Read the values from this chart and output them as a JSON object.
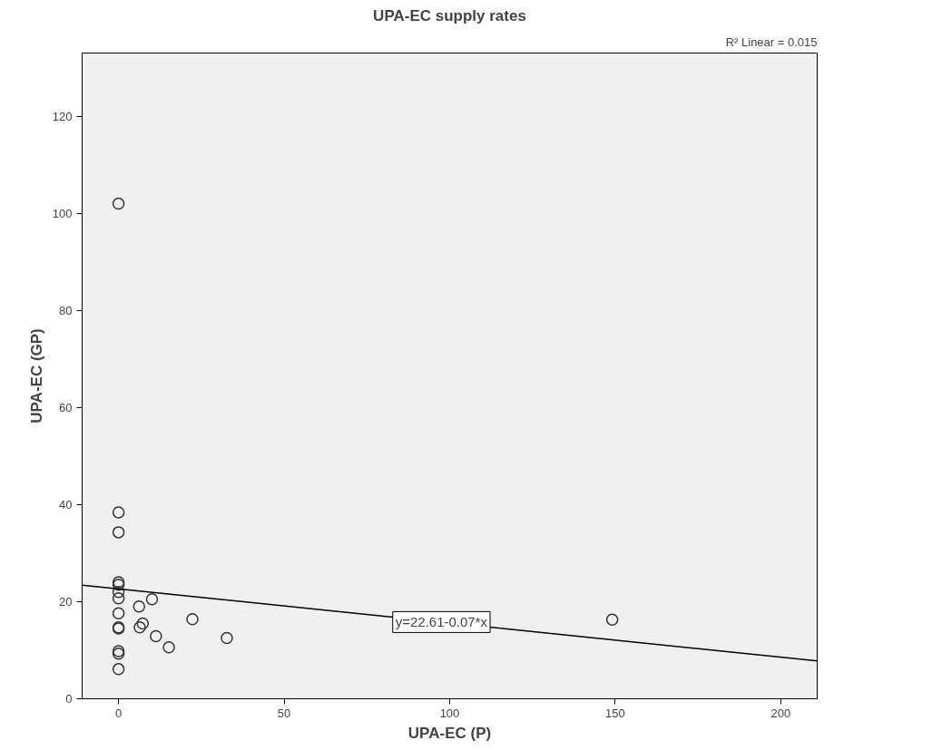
{
  "chart_data": {
    "type": "scatter",
    "title": "UPA-EC supply rates",
    "xlabel": "UPA-EC (P)",
    "ylabel": "UPA-EC (GP)",
    "xlim": [
      -11,
      211
    ],
    "xticks": [
      0,
      50,
      100,
      150,
      200
    ],
    "ylim": [
      0,
      133
    ],
    "yticks": [
      0,
      20,
      40,
      60,
      80,
      100,
      120
    ],
    "grid": false,
    "marker": "circle",
    "series": [
      {
        "color": "#333333",
        "x": [
          0,
          0,
          0,
          0,
          0,
          0,
          0,
          0,
          0,
          0,
          0,
          0,
          0,
          6.2,
          10.1,
          7.3,
          6.4,
          11.3,
          15.2,
          22.3,
          32.7,
          149.1
        ],
        "values": [
          102,
          38.4,
          34.3,
          24,
          23.5,
          22,
          20.7,
          17.6,
          14.7,
          14.5,
          9.8,
          9.3,
          6.1,
          19,
          20.5,
          15.5,
          14.7,
          12.9,
          10.6,
          16.4,
          12.5,
          16.3
        ]
      },
      {
        "type": "line",
        "marker": "none",
        "color": "#000000",
        "x": [
          -11,
          211
        ],
        "values": [
          23.4,
          7.8
        ]
      }
    ],
    "annotations": [
      {
        "text": "y=22.61-0.07*x",
        "x": 97.5,
        "y": 15.8
      },
      "R² Linear = 0.015"
    ]
  }
}
